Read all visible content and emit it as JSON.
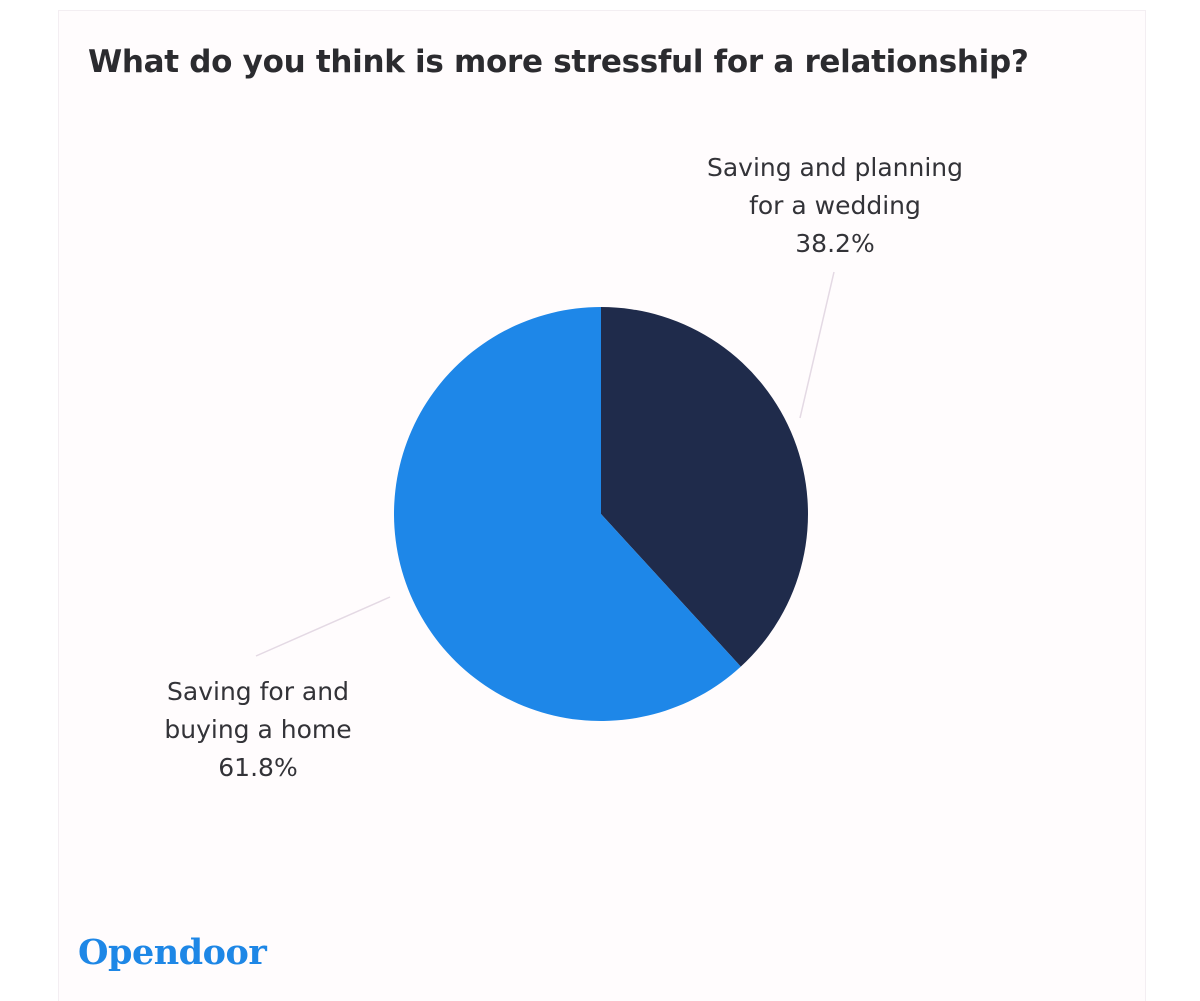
{
  "chart_data": {
    "type": "pie",
    "title": "What do you think is more stressful for a relationship?",
    "slices": [
      {
        "label_lines": [
          "Saving and planning",
          "for a wedding"
        ],
        "value": 38.2,
        "value_label": "38.2%",
        "color": "#1f2b4b"
      },
      {
        "label_lines": [
          "Saving for and",
          "buying a home"
        ],
        "value": 61.8,
        "value_label": "61.8%",
        "color": "#1e87e8"
      }
    ],
    "start_angle": "12 o'clock",
    "direction": "clockwise",
    "leader_line_color": "#e4d9e4"
  },
  "brand": {
    "logo_text": "Opendoor",
    "color": "#1e87e6"
  }
}
